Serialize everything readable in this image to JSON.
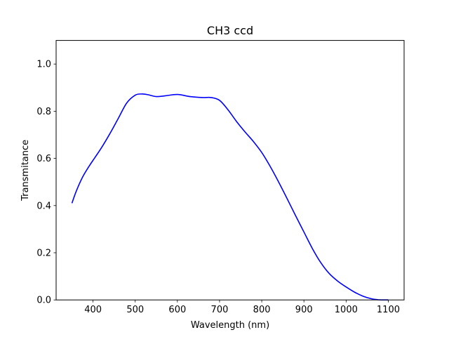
{
  "chart_data": {
    "type": "line",
    "title": "CH3 ccd",
    "xlabel": "Wavelength (nm)",
    "ylabel": "Transmitance",
    "xlim": [
      312.5,
      1137.5
    ],
    "ylim": [
      0,
      1.1
    ],
    "xticks": [
      400,
      500,
      600,
      700,
      800,
      900,
      1000,
      1100
    ],
    "yticks": [
      0.0,
      0.2,
      0.4,
      0.6,
      0.8,
      1.0
    ],
    "xtick_labels": [
      "400",
      "500",
      "600",
      "700",
      "800",
      "900",
      "1000",
      "1100"
    ],
    "ytick_labels": [
      "0.0",
      "0.2",
      "0.4",
      "0.6",
      "0.8",
      "1.0"
    ],
    "grid": false,
    "legend": "none",
    "series": [
      {
        "color": "#0000ff",
        "x": [
          350,
          360,
          375,
          390,
          405,
          420,
          440,
          460,
          480,
          500,
          515,
          530,
          550,
          570,
          600,
          630,
          660,
          680,
          700,
          720,
          740,
          760,
          780,
          800,
          820,
          840,
          860,
          880,
          900,
          920,
          940,
          960,
          980,
          1000,
          1020,
          1040,
          1060,
          1075,
          1090,
          1100
        ],
        "y": [
          0.41,
          0.46,
          0.52,
          0.565,
          0.605,
          0.645,
          0.705,
          0.77,
          0.835,
          0.868,
          0.873,
          0.87,
          0.862,
          0.865,
          0.871,
          0.862,
          0.858,
          0.858,
          0.846,
          0.806,
          0.757,
          0.713,
          0.672,
          0.625,
          0.566,
          0.5,
          0.43,
          0.358,
          0.288,
          0.218,
          0.158,
          0.112,
          0.08,
          0.055,
          0.033,
          0.016,
          0.005,
          0.001,
          0.0,
          0.0
        ]
      }
    ]
  }
}
